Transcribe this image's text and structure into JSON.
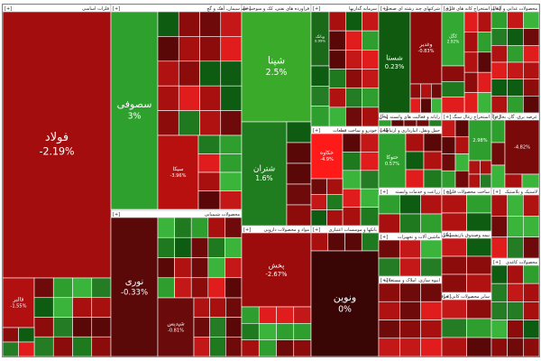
{
  "expand_label": "[+]",
  "sectors": [
    {
      "title": "فلزات اساسی",
      "tiles": [
        {
          "symbol": "فولاد",
          "change": "-2.19%"
        },
        {
          "symbol": "فالبر",
          "change": "-1.55%"
        }
      ]
    },
    {
      "title": "سیمان، آهک و گچ",
      "tiles": [
        {
          "symbol": "سصوفی",
          "change": "3%"
        },
        {
          "symbol": "سیکا",
          "change": "-3.96%"
        }
      ]
    },
    {
      "title": "محصولات شیمیایی",
      "tiles": [
        {
          "symbol": "نوری",
          "change": "-0.33%"
        },
        {
          "symbol": "شپدیس",
          "change": "-0.81%"
        }
      ]
    },
    {
      "title": "فراورده های نفتی، کک و سوخت هسته ای",
      "tiles": [
        {
          "symbol": "شپنا",
          "change": "2.5%"
        },
        {
          "symbol": "شتران",
          "change": "1.6%"
        }
      ]
    },
    {
      "title": "مواد و محصولات دارویی",
      "tiles": [
        {
          "symbol": "پخش",
          "change": "-2.67%"
        }
      ]
    },
    {
      "title": "سرمایه گذاریها",
      "tiles": [
        {
          "symbol": "وبانک",
          "change": "0.99%"
        }
      ]
    },
    {
      "title": "خودرو و ساخت قطعات",
      "tiles": [
        {
          "symbol": "خکاوه",
          "change": "-4.9%"
        }
      ]
    },
    {
      "title": "بانکها و موسسات اعتباری",
      "tiles": [
        {
          "symbol": "ونوین",
          "change": "0%"
        }
      ]
    },
    {
      "title": "شرکتهای چند رشته ای صنعتی",
      "tiles": [
        {
          "symbol": "شستا",
          "change": "0.23%"
        },
        {
          "symbol": "وغدیر",
          "change": "-0.83%"
        }
      ]
    },
    {
      "title": "استخراج کانه های فلزی",
      "tiles": [
        {
          "symbol": "کگل",
          "change": "2.92%"
        }
      ]
    },
    {
      "title": "محصولات غذایی و آشامیدنی",
      "tiles": []
    },
    {
      "title": "رایانه و فعالیت های وابسته به آن",
      "tiles": []
    },
    {
      "title": "عرضه برق، گاز، بخار و آب گرم",
      "tiles": [
        {
          "change": "-4.82%"
        }
      ]
    },
    {
      "title": "حمل ونقل، انبارداری و ارتباطات",
      "tiles": [
        {
          "symbol": "حتوکا",
          "change": "0.57%"
        }
      ]
    },
    {
      "title": "زراعت و خدمات وابسته",
      "tiles": []
    },
    {
      "title": "استخراج زغال سنگ",
      "tiles": [
        {
          "change": "2.98%"
        }
      ]
    },
    {
      "title": "ماشین آلات و تجهیزات",
      "tiles": []
    },
    {
      "title": "محصولات کاغذی",
      "tiles": []
    },
    {
      "title": "ساخت محصولات فلزی",
      "tiles": []
    },
    {
      "title": "بیمه وصندوق بازنشستگی",
      "tiles": []
    },
    {
      "title": "لاستیک و پلاستیک",
      "tiles": []
    },
    {
      "title": "انبوه سازی، املاک و مستغلات",
      "tiles": []
    },
    {
      "title": "سایر محصولات کانی غیرفلزی",
      "tiles": []
    }
  ]
}
